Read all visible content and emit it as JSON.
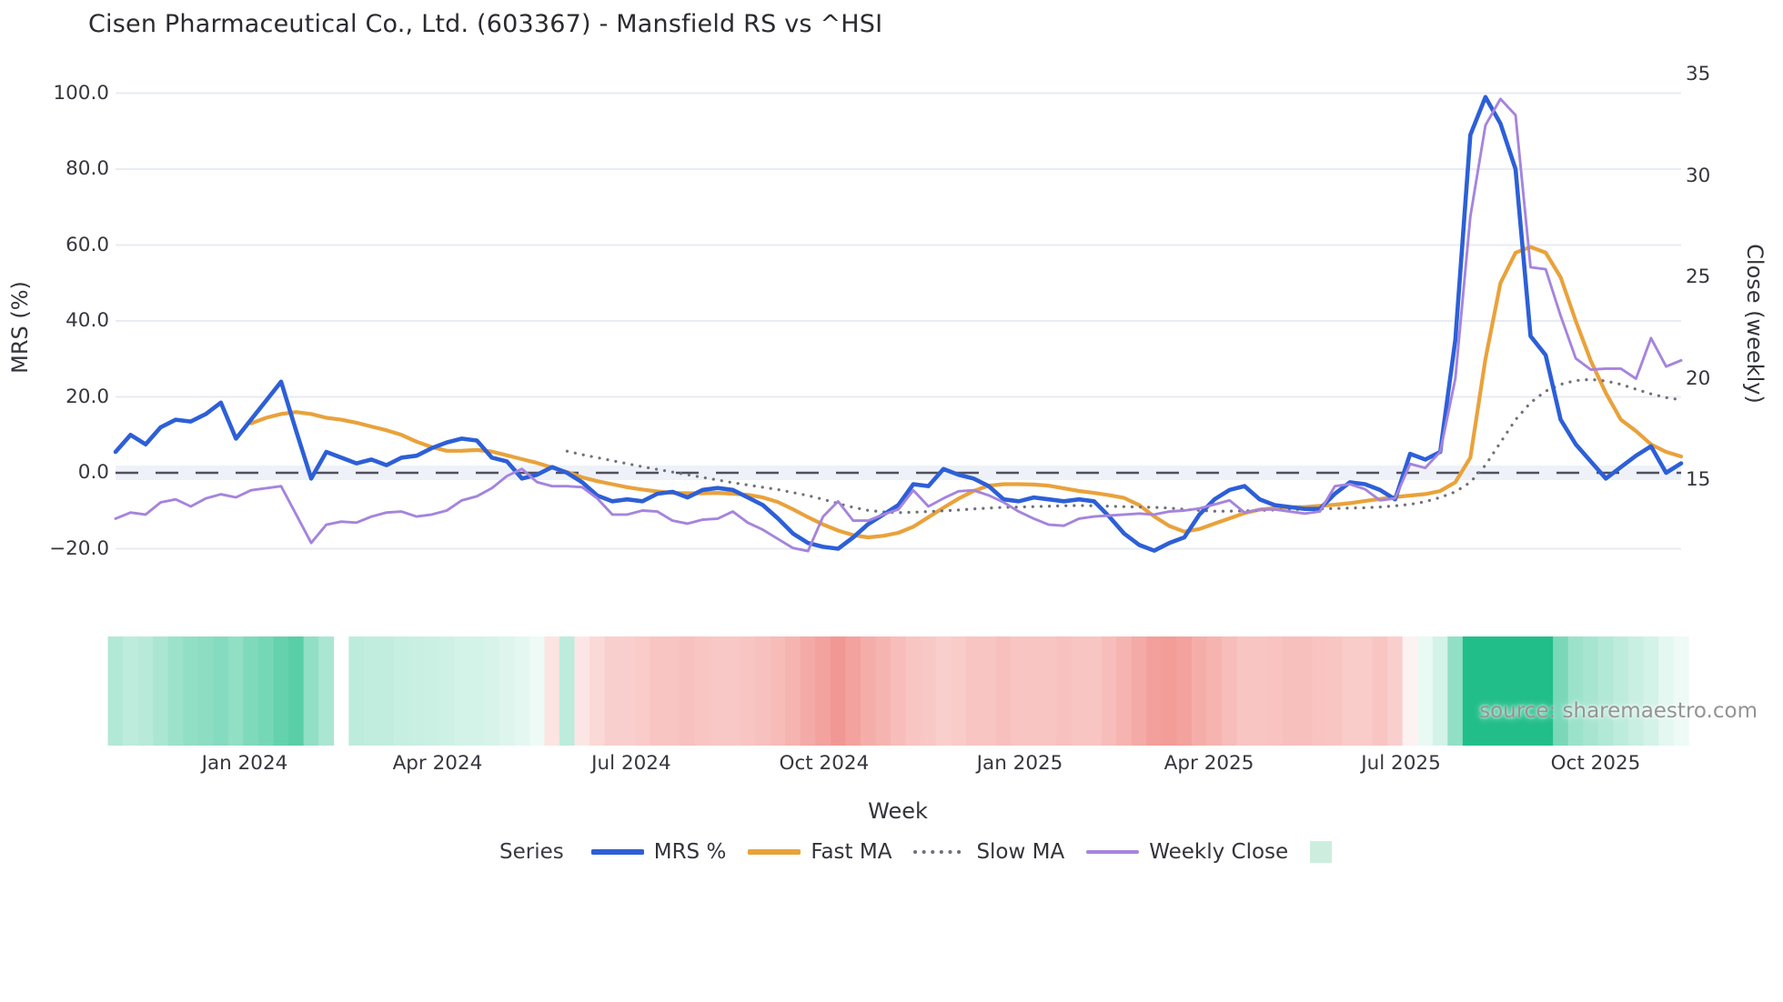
{
  "title": "Cisen Pharmaceutical Co., Ltd. (603367) - Mansfield RS vs ^HSI",
  "source": "source: sharemaestro.com",
  "axes": {
    "x": {
      "label": "Week",
      "tick_labels": [
        "Jan 2024",
        "Apr 2024",
        "Jul 2024",
        "Oct 2024",
        "Jan 2025",
        "Apr 2025",
        "Jul 2025",
        "Oct 2025"
      ],
      "tick_indices": [
        8.58,
        21.39,
        34.26,
        47.07,
        60.07,
        72.64,
        85.39,
        98.32
      ]
    },
    "y_left": {
      "label": "MRS (%)",
      "ticks": [
        {
          "v": 100,
          "label": "100.0"
        },
        {
          "v": 80,
          "label": "80.0"
        },
        {
          "v": 60,
          "label": "60.0"
        },
        {
          "v": 40,
          "label": "40.0"
        },
        {
          "v": 20,
          "label": "20.0"
        },
        {
          "v": 0,
          "label": "0.0"
        },
        {
          "v": -20,
          "label": "−20.0"
        }
      ]
    },
    "y_right": {
      "label": "Close (weekly)",
      "ticks": [
        {
          "v": 35,
          "label": "35"
        },
        {
          "v": 30,
          "label": "30"
        },
        {
          "v": 25,
          "label": "25"
        },
        {
          "v": 20,
          "label": "20"
        },
        {
          "v": 15,
          "label": "15"
        }
      ]
    }
  },
  "legend": {
    "title": "Series",
    "items": [
      {
        "label": "MRS %",
        "color": "#2d5fd7",
        "style": "solid"
      },
      {
        "label": "Fast MA",
        "color": "#e9a23b",
        "style": "solid"
      },
      {
        "label": "Slow MA",
        "color": "#70707a",
        "style": "dotted"
      },
      {
        "label": "Weekly Close",
        "color": "#a584dd",
        "style": "solid"
      },
      {
        "label": "",
        "color": "#cdeede",
        "style": "square"
      }
    ]
  },
  "colors": {
    "grid": "#e9ebf2",
    "zero_dash": "#50505c",
    "zero_band": "#eef1f8",
    "heat_positive": "#22be8a",
    "heat_negative": "#ee7670"
  },
  "chart_data": {
    "type": "line",
    "x_unit": "week_index",
    "n_points": 105,
    "x_range_label": "Nov 2023 to Nov 2025, weekly",
    "y_left_axis": {
      "label": "MRS (%)",
      "range": [
        -25,
        105
      ],
      "grid": true
    },
    "y_right_axis": {
      "label": "Close (weekly)",
      "range": [
        13.5,
        36
      ],
      "grid": false
    },
    "zero_line": {
      "axis": "left",
      "value": 0,
      "style": "dashed"
    },
    "legend_position": "bottom-center",
    "series": [
      {
        "name": "Fast MA",
        "axis": "left",
        "color": "#e9a23b",
        "width": 4.2,
        "dash": "solid",
        "values": [
          null,
          null,
          null,
          null,
          null,
          null,
          null,
          null,
          null,
          13,
          14.5,
          15.5,
          16,
          15.5,
          14.5,
          14,
          13.2,
          12.2,
          11.2,
          10,
          8.2,
          6.8,
          5.8,
          5.8,
          6,
          5.6,
          4.6,
          3.6,
          2.6,
          1.4,
          0.2,
          -1.2,
          -2.2,
          -3,
          -3.8,
          -4.4,
          -4.9,
          -5.3,
          -5.4,
          -5.4,
          -5.3,
          -5.5,
          -5.8,
          -6.5,
          -7.7,
          -9.6,
          -11.7,
          -13.6,
          -15.2,
          -16.4,
          -17,
          -16.6,
          -15.8,
          -14.2,
          -11.7,
          -9.2,
          -6.8,
          -4.8,
          -3.4,
          -3,
          -3,
          -3.1,
          -3.4,
          -4.1,
          -4.8,
          -5.3,
          -5.9,
          -6.6,
          -8.5,
          -11.5,
          -14,
          -15.5,
          -14.8,
          -13.4,
          -12,
          -10.6,
          -9.7,
          -9.3,
          -9.1,
          -9,
          -8.7,
          -8.4,
          -8,
          -7.4,
          -6.9,
          -6.4,
          -6,
          -5.6,
          -4.8,
          -2.5,
          4,
          30,
          50,
          58,
          59.5,
          58,
          51.5,
          40,
          29.5,
          21,
          14,
          11,
          7.5,
          5.5,
          4.3
        ]
      },
      {
        "name": "Slow MA",
        "axis": "left",
        "color": "#70707a",
        "width": 3.2,
        "dash": "dotted",
        "values": [
          null,
          null,
          null,
          null,
          null,
          null,
          null,
          null,
          null,
          null,
          null,
          null,
          null,
          null,
          null,
          null,
          null,
          null,
          null,
          null,
          null,
          null,
          null,
          null,
          null,
          null,
          null,
          null,
          null,
          null,
          5.7,
          4.8,
          4,
          3.2,
          2.4,
          1.6,
          0.9,
          0.2,
          -0.5,
          -1.2,
          -1.9,
          -2.6,
          -3.2,
          -3.8,
          -4.4,
          -5.2,
          -6,
          -7,
          -8.1,
          -9.1,
          -9.9,
          -10.3,
          -10.5,
          -10.4,
          -10.2,
          -10,
          -9.8,
          -9.5,
          -9.3,
          -9.1,
          -9,
          -8.9,
          -8.8,
          -8.7,
          -8.6,
          -8.7,
          -8.8,
          -8.9,
          -9,
          -9.1,
          -9.3,
          -9.6,
          -9.9,
          -10.1,
          -10.1,
          -10,
          -9.9,
          -9.8,
          -9.7,
          -9.6,
          -9.5,
          -9.4,
          -9.3,
          -9.2,
          -9,
          -8.7,
          -8.3,
          -7.6,
          -6.5,
          -5,
          -2.5,
          2,
          8,
          14,
          18.5,
          21.5,
          23.3,
          24.3,
          24.6,
          24.2,
          23.3,
          22,
          20.8,
          19.8,
          19.2
        ]
      },
      {
        "name": "MRS %",
        "axis": "left",
        "color": "#2d5fd7",
        "width": 4.6,
        "dash": "solid",
        "values": [
          5.5,
          10,
          7.5,
          12,
          14,
          13.5,
          15.5,
          18.5,
          9,
          14,
          19,
          24,
          11,
          -1.5,
          5.5,
          4,
          2.5,
          3.5,
          2,
          4,
          4.5,
          6.5,
          8,
          9,
          8.5,
          4,
          3,
          -1.5,
          -0.5,
          1.5,
          0,
          -2.5,
          -6,
          -7.5,
          -7,
          -7.5,
          -5.5,
          -5,
          -6.5,
          -4.5,
          -4,
          -4.5,
          -6.5,
          -8.5,
          -12,
          -16,
          -18.5,
          -19.5,
          -20,
          -17,
          -13.5,
          -11,
          -8.5,
          -3,
          -3.5,
          1,
          -0.5,
          -1.5,
          -3.5,
          -7,
          -7.5,
          -6.5,
          -7,
          -7.5,
          -7,
          -7.5,
          -11.5,
          -16,
          -19,
          -20.5,
          -18.5,
          -17,
          -11,
          -7,
          -4.5,
          -3.5,
          -7,
          -8.5,
          -9,
          -9.5,
          -9.5,
          -5.5,
          -2.5,
          -3,
          -4.5,
          -7,
          5,
          3.5,
          5.5,
          35,
          89,
          99,
          92,
          80,
          36,
          31,
          14,
          7.5,
          3,
          -1.5,
          1.5,
          4.5,
          7,
          0,
          2.5
        ]
      },
      {
        "name": "Weekly Close",
        "axis": "right",
        "color": "#a584dd",
        "width": 2.9,
        "dash": "solid",
        "values": [
          13.1,
          13.4,
          13.3,
          13.9,
          14.05,
          13.7,
          14.1,
          14.3,
          14.15,
          14.5,
          14.6,
          14.7,
          13.3,
          11.9,
          12.8,
          12.95,
          12.9,
          13.2,
          13.4,
          13.45,
          13.2,
          13.3,
          13.5,
          14,
          14.2,
          14.6,
          15.2,
          15.55,
          14.9,
          14.7,
          14.7,
          14.65,
          14.1,
          13.3,
          13.3,
          13.5,
          13.45,
          13,
          12.85,
          13.05,
          13.1,
          13.45,
          12.9,
          12.55,
          12.1,
          11.65,
          11.5,
          13.2,
          13.95,
          13,
          13,
          13.3,
          13.55,
          14.5,
          13.7,
          14.1,
          14.45,
          14.5,
          14.25,
          13.9,
          13.45,
          13.1,
          12.8,
          12.75,
          13.1,
          13.2,
          13.25,
          13.3,
          13.35,
          13.3,
          13.45,
          13.5,
          13.6,
          13.8,
          14,
          13.4,
          13.55,
          13.55,
          13.45,
          13.35,
          13.45,
          14.7,
          14.8,
          14.55,
          14,
          14.1,
          15.8,
          15.6,
          16.4,
          20,
          28,
          32.5,
          33.8,
          33,
          25.5,
          25.4,
          23.1,
          21,
          20.45,
          20.5,
          20.5,
          20,
          22,
          20.6,
          20.9
        ]
      }
    ],
    "heatmap_strip": {
      "description": "weekly relative-strength heat band, green positive / red negative",
      "positive_color": "#22be8a",
      "negative_color": "#ee7670",
      "values": [
        0.35,
        0.3,
        0.32,
        0.38,
        0.45,
        0.5,
        0.52,
        0.55,
        0.5,
        0.58,
        0.62,
        0.7,
        0.75,
        0.5,
        0.38,
        null,
        0.3,
        0.28,
        0.28,
        0.26,
        0.25,
        0.24,
        0.22,
        0.2,
        0.2,
        0.18,
        0.15,
        0.12,
        0.08,
        -0.2,
        0.3,
        -0.18,
        -0.28,
        -0.35,
        -0.35,
        -0.38,
        -0.42,
        -0.42,
        -0.45,
        -0.42,
        -0.4,
        -0.4,
        -0.42,
        -0.45,
        -0.5,
        -0.55,
        -0.62,
        -0.68,
        -0.75,
        -0.68,
        -0.6,
        -0.55,
        -0.48,
        -0.42,
        -0.4,
        -0.35,
        -0.38,
        -0.42,
        -0.42,
        -0.46,
        -0.42,
        -0.42,
        -0.42,
        -0.45,
        -0.42,
        -0.42,
        -0.48,
        -0.55,
        -0.62,
        -0.7,
        -0.72,
        -0.68,
        -0.6,
        -0.55,
        -0.48,
        -0.42,
        -0.42,
        -0.44,
        -0.46,
        -0.46,
        -0.44,
        -0.42,
        -0.38,
        -0.38,
        -0.42,
        -0.35,
        -0.1,
        0.1,
        0.2,
        0.5,
        1,
        1,
        1,
        1,
        1,
        1,
        0.6,
        0.45,
        0.4,
        0.35,
        0.3,
        0.25,
        0.2,
        0.12,
        0.08
      ]
    }
  }
}
